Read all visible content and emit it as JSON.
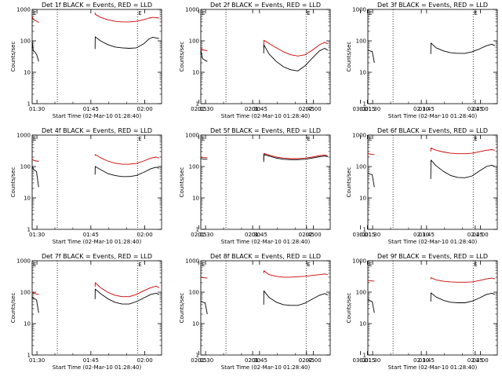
{
  "figure": {
    "background": "#ffffff"
  },
  "colors": {
    "events": "#000000",
    "lld": "#cc0000",
    "axis": "#000000"
  },
  "shared": {
    "ylabel": "Counts/sec",
    "xlabel": "Start Time (02-Mar-10 01:28:40)",
    "x_ticks": [
      "01:30",
      "01:45",
      "02:00",
      "02:15",
      "02:30",
      "02:45",
      "03:00"
    ],
    "y_ticks": [
      "1",
      "10",
      "100",
      "1000"
    ],
    "event_marker": "E"
  },
  "chart_data": [
    {
      "type": "line",
      "title": "Det 1f BLACK = Events, RED = LLD",
      "xlim_min": [
        0,
        36
      ],
      "ylim": [
        1,
        1000
      ],
      "dotted_x_min": [
        0,
        7,
        29.3
      ],
      "series": [
        {
          "name": "Events",
          "segments": [
            {
              "x": [
                0,
                0.3,
                0.8,
                1.3,
                1.8
              ],
              "y": [
                100,
                48,
                44,
                35,
                22
              ]
            },
            {
              "x": [
                17.5,
                17.55,
                19,
                21,
                23,
                25,
                27,
                29,
                31,
                32.5,
                33.5,
                35.3
              ],
              "y": [
                55,
                135,
                100,
                76,
                64,
                60,
                58,
                60,
                80,
                115,
                130,
                118
              ]
            }
          ]
        },
        {
          "name": "LLD",
          "segments": [
            {
              "x": [
                0,
                0.3,
                0.8,
                1.3,
                1.8
              ],
              "y": [
                600,
                480,
                450,
                420,
                380
              ]
            },
            {
              "x": [
                17.5,
                17.55,
                19,
                21,
                23,
                25,
                27,
                29,
                31,
                32.5,
                33.5,
                35.3
              ],
              "y": [
                800,
                700,
                560,
                470,
                420,
                400,
                400,
                420,
                470,
                530,
                560,
                530
              ]
            }
          ]
        }
      ]
    },
    {
      "type": "line",
      "title": "Det 2f BLACK = Events, RED = LLD",
      "xlim_min": [
        0,
        36
      ],
      "ylim": [
        1,
        1000
      ],
      "dotted_x_min": [
        0,
        7,
        29.3
      ],
      "series": [
        {
          "name": "Events",
          "segments": [
            {
              "x": [
                0,
                0.5,
                1.2,
                1.8
              ],
              "y": [
                50,
                27,
                24,
                22
              ]
            },
            {
              "x": [
                17.5,
                17.55,
                19,
                21,
                23,
                25,
                27,
                29,
                31,
                33,
                34.5,
                35.3
              ],
              "y": [
                40,
                75,
                38,
                22,
                15,
                12,
                11,
                16,
                28,
                48,
                58,
                50
              ]
            }
          ]
        },
        {
          "name": "LLD",
          "segments": [
            {
              "x": [
                0,
                0.5,
                1.2,
                1.8
              ],
              "y": [
                60,
                52,
                50,
                48
              ]
            },
            {
              "x": [
                17.5,
                17.55,
                19,
                21,
                23,
                25,
                27,
                29,
                31,
                33,
                34.5,
                35.3
              ],
              "y": [
                60,
                105,
                82,
                60,
                45,
                36,
                33,
                36,
                50,
                75,
                90,
                80
              ]
            }
          ]
        }
      ]
    },
    {
      "type": "line",
      "title": "Det 3f BLACK = Events, RED = LLD",
      "xlim_min": [
        0,
        36
      ],
      "ylim": [
        1,
        1000
      ],
      "dotted_x_min": [
        0,
        7,
        29.3
      ],
      "series": [
        {
          "name": "Events",
          "segments": [
            {
              "x": [
                0,
                0.5,
                1.2,
                1.8
              ],
              "y": [
                52,
                48,
                46,
                20
              ]
            },
            {
              "x": [
                17.5,
                17.55,
                19,
                21,
                23,
                25,
                27,
                29,
                31,
                33,
                34.5,
                35.3
              ],
              "y": [
                38,
                85,
                60,
                48,
                42,
                40,
                40,
                45,
                55,
                70,
                78,
                70
              ]
            }
          ]
        },
        {
          "name": "LLD",
          "segments": []
        }
      ]
    },
    {
      "type": "line",
      "title": "Det 4f BLACK = Events, RED = LLD",
      "xlim_min": [
        0,
        36
      ],
      "ylim": [
        1,
        1000
      ],
      "dotted_x_min": [
        0,
        7,
        29.3
      ],
      "series": [
        {
          "name": "Events",
          "segments": [
            {
              "x": [
                0,
                0.5,
                1.2,
                1.8
              ],
              "y": [
                100,
                78,
                70,
                22
              ]
            },
            {
              "x": [
                17.5,
                17.55,
                19,
                21,
                23,
                25,
                27,
                29,
                31,
                33,
                34.5,
                35.3
              ],
              "y": [
                55,
                100,
                80,
                60,
                52,
                48,
                48,
                52,
                65,
                85,
                95,
                88
              ]
            }
          ]
        },
        {
          "name": "LLD",
          "segments": [
            {
              "x": [
                0,
                0.5,
                1.2,
                1.8
              ],
              "y": [
                170,
                155,
                150,
                145
              ]
            },
            {
              "x": [
                17.5,
                17.55,
                19,
                21,
                23,
                25,
                27,
                29,
                31,
                33,
                34.5,
                35.3
              ],
              "y": [
                220,
                240,
                190,
                150,
                128,
                118,
                118,
                125,
                150,
                185,
                200,
                185
              ]
            }
          ]
        }
      ]
    },
    {
      "type": "line",
      "title": "Det 5f BLACK = Events, RED = LLD",
      "xlim_min": [
        0,
        36
      ],
      "ylim": [
        1,
        1000
      ],
      "dotted_x_min": [
        0,
        7,
        29.3
      ],
      "series": [
        {
          "name": "Events",
          "segments": [
            {
              "x": [
                0,
                0.5,
                1.2,
                1.8
              ],
              "y": [
                180,
                175,
                172,
                170
              ]
            },
            {
              "x": [
                17.5,
                17.55,
                19,
                21,
                23,
                25,
                27,
                29,
                31,
                33,
                34.5,
                35.3
              ],
              "y": [
                140,
                240,
                215,
                185,
                170,
                165,
                165,
                170,
                185,
                205,
                215,
                205
              ]
            }
          ]
        },
        {
          "name": "LLD",
          "segments": [
            {
              "x": [
                0,
                0.5,
                1.2,
                1.8
              ],
              "y": [
                200,
                195,
                192,
                190
              ]
            },
            {
              "x": [
                17.5,
                17.55,
                19,
                21,
                23,
                25,
                27,
                29,
                31,
                33,
                34.5,
                35.3
              ],
              "y": [
                160,
                260,
                232,
                200,
                185,
                178,
                178,
                185,
                200,
                222,
                232,
                220
              ]
            }
          ]
        }
      ]
    },
    {
      "type": "line",
      "title": "Det 6f BLACK = Events, RED = LLD",
      "xlim_min": [
        0,
        36
      ],
      "ylim": [
        1,
        1000
      ],
      "dotted_x_min": [
        0,
        7,
        29.3
      ],
      "series": [
        {
          "name": "Events",
          "segments": [
            {
              "x": [
                0,
                0.5,
                1.2,
                1.8
              ],
              "y": [
                62,
                58,
                55,
                22
              ]
            },
            {
              "x": [
                17.5,
                17.55,
                19,
                21,
                23,
                25,
                27,
                29,
                31,
                33,
                34.5,
                35.3
              ],
              "y": [
                40,
                160,
                105,
                70,
                52,
                45,
                44,
                50,
                72,
                100,
                110,
                100
              ]
            }
          ]
        },
        {
          "name": "LLD",
          "segments": [
            {
              "x": [
                0,
                0.5,
                1.2,
                1.8
              ],
              "y": [
                260,
                250,
                245,
                240
              ]
            },
            {
              "x": [
                17.5,
                17.55,
                19,
                21,
                23,
                25,
                27,
                29,
                31,
                33,
                34.5,
                35.3
              ],
              "y": [
                300,
                390,
                330,
                290,
                265,
                255,
                255,
                265,
                295,
                330,
                345,
                330
              ]
            }
          ]
        }
      ]
    },
    {
      "type": "line",
      "title": "Det 7f BLACK = Events, RED = LLD",
      "xlim_min": [
        0,
        36
      ],
      "ylim": [
        1,
        1000
      ],
      "dotted_x_min": [
        0,
        7,
        29.3
      ],
      "series": [
        {
          "name": "Events",
          "segments": [
            {
              "x": [
                0,
                0.5,
                1.2,
                1.8
              ],
              "y": [
                70,
                62,
                58,
                22
              ]
            },
            {
              "x": [
                17.5,
                17.55,
                19,
                21,
                23,
                25,
                27,
                29,
                31,
                33,
                34.5,
                35.3
              ],
              "y": [
                60,
                125,
                90,
                62,
                48,
                42,
                42,
                50,
                65,
                85,
                92,
                85
              ]
            }
          ]
        },
        {
          "name": "LLD",
          "segments": [
            {
              "x": [
                0,
                0.5,
                1.2,
                1.8
              ],
              "y": [
                100,
                92,
                88,
                85
              ]
            },
            {
              "x": [
                17.5,
                17.55,
                19,
                21,
                23,
                25,
                27,
                29,
                31,
                33,
                34.5,
                35.3
              ],
              "y": [
                150,
                200,
                140,
                100,
                80,
                72,
                72,
                85,
                110,
                140,
                155,
                140
              ]
            }
          ]
        }
      ]
    },
    {
      "type": "line",
      "title": "Det 8f BLACK = Events, RED = LLD",
      "xlim_min": [
        0,
        36
      ],
      "ylim": [
        1,
        1000
      ],
      "dotted_x_min": [
        0,
        7,
        29.3
      ],
      "series": [
        {
          "name": "Events",
          "segments": [
            {
              "x": [
                0,
                0.5,
                1.2,
                1.8
              ],
              "y": [
                52,
                48,
                46,
                20
              ]
            },
            {
              "x": [
                17.5,
                17.55,
                19,
                21,
                23,
                25,
                27,
                29,
                31,
                33,
                34.5,
                35.3
              ],
              "y": [
                40,
                110,
                68,
                48,
                40,
                38,
                38,
                45,
                60,
                80,
                90,
                82
              ]
            }
          ]
        },
        {
          "name": "LLD",
          "segments": [
            {
              "x": [
                0,
                0.5,
                1.2,
                1.8
              ],
              "y": [
                300,
                290,
                285,
                280
              ]
            },
            {
              "x": [
                17.5,
                17.55,
                19,
                21,
                23,
                25,
                27,
                29,
                31,
                33,
                34.5,
                35.3
              ],
              "y": [
                400,
                480,
                360,
                320,
                300,
                300,
                310,
                320,
                340,
                360,
                380,
                360
              ]
            }
          ]
        }
      ]
    },
    {
      "type": "line",
      "title": "Det 9f BLACK = Events, RED = LLD",
      "xlim_min": [
        0,
        36
      ],
      "ylim": [
        1,
        1000
      ],
      "dotted_x_min": [
        0,
        7,
        29.3
      ],
      "series": [
        {
          "name": "Events",
          "segments": [
            {
              "x": [
                0,
                0.5,
                1.2,
                1.8
              ],
              "y": [
                58,
                54,
                50,
                22
              ]
            },
            {
              "x": [
                17.5,
                17.55,
                19,
                21,
                23,
                25,
                27,
                29,
                31,
                33,
                34.5,
                35.3
              ],
              "y": [
                50,
                95,
                70,
                55,
                48,
                46,
                46,
                52,
                65,
                85,
                92,
                85
              ]
            }
          ]
        },
        {
          "name": "LLD",
          "segments": [
            {
              "x": [
                0,
                0.5,
                1.2,
                1.8
              ],
              "y": [
                240,
                232,
                228,
                225
              ]
            },
            {
              "x": [
                17.5,
                17.55,
                19,
                21,
                23,
                25,
                27,
                29,
                31,
                33,
                34.5,
                35.3
              ],
              "y": [
                260,
                290,
                245,
                222,
                212,
                208,
                208,
                212,
                235,
                265,
                280,
                265
              ]
            }
          ]
        }
      ]
    }
  ]
}
